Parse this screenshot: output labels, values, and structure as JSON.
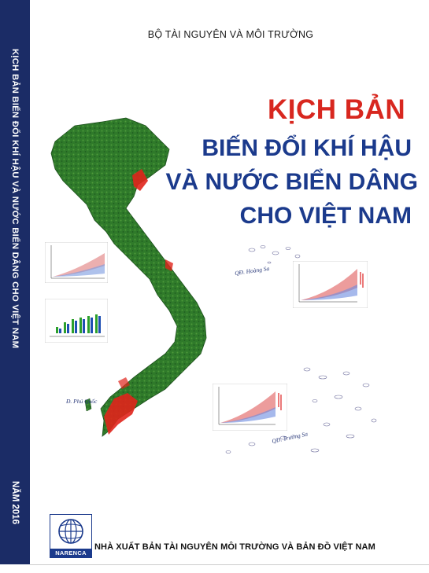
{
  "cover": {
    "spine_title": "KỊCH BẢN BIẾN ĐỔI KHÍ HẬU VÀ NƯỚC BIỂN DÂNG CHO VIỆT NAM",
    "spine_year": "NĂM 2016",
    "ministry": "BỘ TÀI NGUYÊN VÀ MÔI TRƯỜNG",
    "title_line1": "KỊCH BẢN",
    "title_line2": "BIẾN ĐỔI KHÍ HẬU",
    "title_line3": "VÀ NƯỚC BIỂN DÂNG",
    "title_line4": "CHO VIỆT NAM",
    "label_hoang_sa": "QĐ. Hoàng Sa",
    "label_truong_sa": "QĐ. Trường Sa",
    "label_phu_quoc": "Đ. Phú Quốc",
    "logo_text": "NARENCA",
    "publisher": "NHÀ XUẤT BẢN TÀI NGUYÊN MÔI TRƯỜNG VÀ BẢN ĐỒ VIỆT NAM"
  },
  "colors": {
    "spine": "#1b2c66",
    "title_red": "#d8271f",
    "title_blue": "#1b3a8c",
    "map_green": "#2f7a2a",
    "map_red": "#e0231b"
  },
  "icons": [
    "vietnam-map",
    "projection-chart",
    "globe-logo-icon"
  ]
}
